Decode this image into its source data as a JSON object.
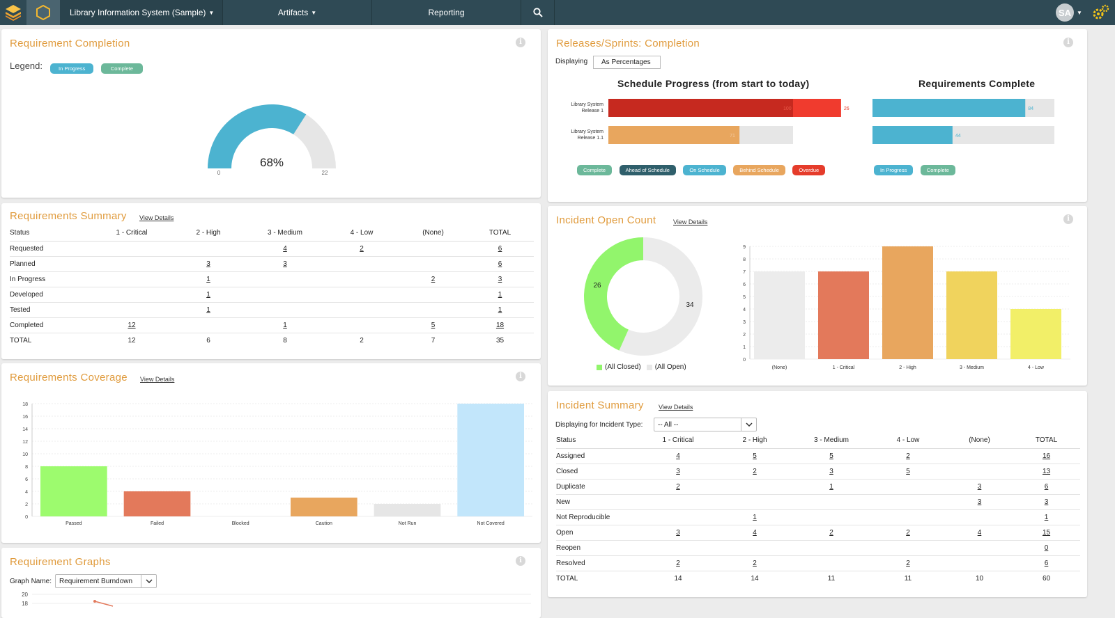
{
  "nav": {
    "project": "Library Information System (Sample)",
    "artifacts": "Artifacts",
    "reporting": "Reporting",
    "avatar": "SA"
  },
  "req_completion": {
    "title": "Requirement Completion",
    "legend_label": "Legend:",
    "legend": [
      "In Progress",
      "Complete"
    ],
    "percent_label": "68%",
    "min_label": "0",
    "max_label": "22",
    "fraction": 0.68
  },
  "releases": {
    "title": "Releases/Sprints: Completion",
    "displaying_label": "Displaying",
    "displaying_value": "As Percentages",
    "schedule_title": "Schedule Progress (from start to today)",
    "requirements_title": "Requirements Complete",
    "rows": [
      {
        "label_line1": "Library System",
        "label_line2": "Release 1",
        "schedule_value": 100,
        "overdue_value": 26,
        "req_value": 84
      },
      {
        "label_line1": "Library System",
        "label_line2": "Release 1.1",
        "schedule_value": 71,
        "overdue_value": null,
        "req_value": 44
      }
    ],
    "schedule_legend": [
      "Complete",
      "Ahead of Schedule",
      "On Schedule",
      "Behind Schedule",
      "Overdue"
    ],
    "req_legend": [
      "In Progress",
      "Complete"
    ]
  },
  "req_summary": {
    "title": "Requirements Summary",
    "view_details": "View Details",
    "headers": [
      "Status",
      "1 - Critical",
      "2 - High",
      "3 - Medium",
      "4 - Low",
      "(None)",
      "TOTAL"
    ],
    "rows": [
      [
        "Requested",
        "",
        "",
        "4",
        "2",
        "",
        "6"
      ],
      [
        "Planned",
        "",
        "3",
        "3",
        "",
        "",
        "6"
      ],
      [
        "In Progress",
        "",
        "1",
        "",
        "",
        "2",
        "3"
      ],
      [
        "Developed",
        "",
        "1",
        "",
        "",
        "",
        "1"
      ],
      [
        "Tested",
        "",
        "1",
        "",
        "",
        "",
        "1"
      ],
      [
        "Completed",
        "12",
        "",
        "1",
        "",
        "5",
        "18"
      ]
    ],
    "total": [
      "TOTAL",
      "12",
      "6",
      "8",
      "2",
      "7",
      "35"
    ]
  },
  "incident_open": {
    "title": "Incident Open Count",
    "view_details": "View Details",
    "donut": {
      "closed": 26,
      "open": 34,
      "closed_label": "(All Closed)",
      "open_label": "(All Open)"
    },
    "bars": {
      "categories": [
        "(None)",
        "1 - Critical",
        "2 - High",
        "3 - Medium",
        "4 - Low"
      ],
      "values": [
        7,
        7,
        9,
        7,
        4
      ],
      "ymax": 9,
      "colors": [
        "#ececec",
        "#e3795b",
        "#e8a65e",
        "#f0d35d",
        "#f2ef68"
      ]
    }
  },
  "req_coverage": {
    "title": "Requirements Coverage",
    "view_details": "View Details",
    "categories": [
      "Passed",
      "Failed",
      "Blocked",
      "Caution",
      "Not Run",
      "Not Covered"
    ],
    "values": [
      8,
      4,
      0,
      3,
      2,
      18
    ],
    "colors": [
      "#9dfb6e",
      "#e3795b",
      "#bbbbbb",
      "#e8a65e",
      "#e6e6e6",
      "#c2e6fb"
    ],
    "ymax": 18,
    "yticks": [
      0,
      2,
      4,
      6,
      8,
      10,
      12,
      14,
      16,
      18
    ]
  },
  "incident_summary": {
    "title": "Incident Summary",
    "view_details": "View Details",
    "filter_label": "Displaying for Incident Type:",
    "filter_value": "-- All --",
    "headers": [
      "Status",
      "1 - Critical",
      "2 - High",
      "3 - Medium",
      "4 - Low",
      "(None)",
      "TOTAL"
    ],
    "rows": [
      [
        "Assigned",
        "4",
        "5",
        "5",
        "2",
        "",
        "16"
      ],
      [
        "Closed",
        "3",
        "2",
        "3",
        "5",
        "",
        "13"
      ],
      [
        "Duplicate",
        "2",
        "",
        "1",
        "",
        "3",
        "6"
      ],
      [
        "New",
        "",
        "",
        "",
        "",
        "3",
        "3"
      ],
      [
        "Not Reproducible",
        "",
        "1",
        "",
        "",
        "",
        "1"
      ],
      [
        "Open",
        "3",
        "4",
        "2",
        "2",
        "4",
        "15"
      ],
      [
        "Reopen",
        "",
        "",
        "",
        "",
        "",
        "0"
      ],
      [
        "Resolved",
        "2",
        "2",
        "",
        "2",
        "",
        "6"
      ]
    ],
    "total": [
      "TOTAL",
      "14",
      "14",
      "11",
      "11",
      "10",
      "60"
    ]
  },
  "req_graphs": {
    "title": "Requirement Graphs",
    "graph_label": "Graph Name:",
    "graph_value": "Requirement Burndown",
    "ytick_top": "20",
    "ytick_next": "18"
  }
}
